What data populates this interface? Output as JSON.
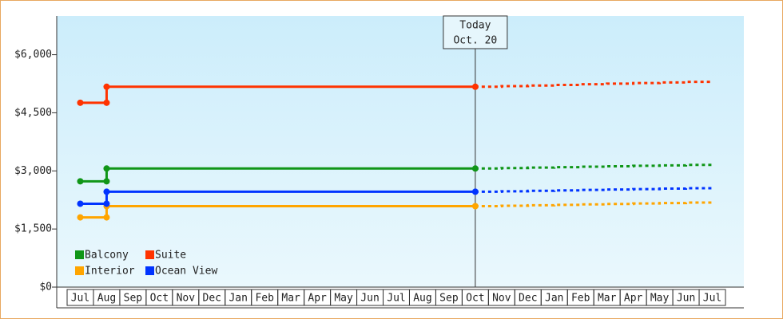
{
  "chart_data": {
    "type": "step-line",
    "annotation": {
      "title": "Today",
      "date": "Oct. 20",
      "index": 15
    },
    "categories": [
      "Jul",
      "Aug",
      "Sep",
      "Oct",
      "Nov",
      "Dec",
      "Jan",
      "Feb",
      "Mar",
      "Apr",
      "May",
      "Jun",
      "Jul",
      "Aug",
      "Sep",
      "Oct",
      "Nov",
      "Dec",
      "Jan",
      "Feb",
      "Mar",
      "Apr",
      "May",
      "Jun",
      "Jul"
    ],
    "ylim": [
      0,
      7000
    ],
    "yticks": [
      {
        "value": 0,
        "label": "$0"
      },
      {
        "value": 1500,
        "label": "$1,500"
      },
      {
        "value": 3000,
        "label": "$3,000"
      },
      {
        "value": 4500,
        "label": "$4,500"
      },
      {
        "value": 6000,
        "label": "$6,000"
      }
    ],
    "legend": "lower left",
    "series": [
      {
        "name": "Balcony",
        "color": "#109618",
        "values": [
          2731,
          3062,
          3062,
          3062,
          3062,
          3062,
          3062,
          3062,
          3062,
          3062,
          3062,
          3062,
          3062,
          3062,
          3062,
          3062,
          null,
          null,
          null,
          null,
          null,
          null,
          null,
          null,
          null
        ],
        "forecast": [
          null,
          null,
          null,
          null,
          null,
          null,
          null,
          null,
          null,
          null,
          null,
          null,
          null,
          null,
          null,
          3062,
          3074,
          3085,
          3097,
          3108,
          3120,
          3131,
          3143,
          3154,
          3166
        ]
      },
      {
        "name": "Suite",
        "color": "#ff3300",
        "values": [
          4759,
          5172,
          5172,
          5172,
          5172,
          5172,
          5172,
          5172,
          5172,
          5172,
          5172,
          5172,
          5172,
          5172,
          5172,
          5172,
          null,
          null,
          null,
          null,
          null,
          null,
          null,
          null,
          null
        ],
        "forecast": [
          null,
          null,
          null,
          null,
          null,
          null,
          null,
          null,
          null,
          null,
          null,
          null,
          null,
          null,
          null,
          5172,
          5188,
          5204,
          5220,
          5236,
          5252,
          5268,
          5284,
          5300,
          5317
        ]
      },
      {
        "name": "Interior",
        "color": "#ffa500",
        "values": [
          1800,
          2090,
          2090,
          2090,
          2090,
          2090,
          2090,
          2090,
          2090,
          2090,
          2090,
          2090,
          2090,
          2090,
          2090,
          2090,
          null,
          null,
          null,
          null,
          null,
          null,
          null,
          null,
          null
        ],
        "forecast": [
          null,
          null,
          null,
          null,
          null,
          null,
          null,
          null,
          null,
          null,
          null,
          null,
          null,
          null,
          null,
          2090,
          2101,
          2113,
          2124,
          2136,
          2147,
          2159,
          2170,
          2182,
          2193
        ]
      },
      {
        "name": "Ocean View",
        "color": "#0033ff",
        "values": [
          2152,
          2462,
          2462,
          2462,
          2462,
          2462,
          2462,
          2462,
          2462,
          2462,
          2462,
          2462,
          2462,
          2462,
          2462,
          2462,
          null,
          null,
          null,
          null,
          null,
          null,
          null,
          null,
          null
        ],
        "forecast": [
          null,
          null,
          null,
          null,
          null,
          null,
          null,
          null,
          null,
          null,
          null,
          null,
          null,
          null,
          null,
          2462,
          2474,
          2485,
          2497,
          2508,
          2520,
          2531,
          2543,
          2554,
          2566
        ]
      }
    ]
  }
}
